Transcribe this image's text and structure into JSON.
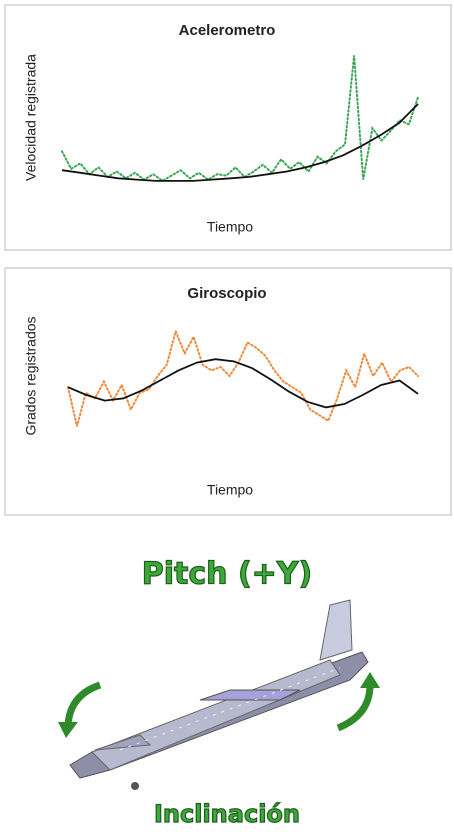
{
  "chart_data": [
    {
      "type": "line",
      "title": "Acelerometro",
      "x_label": "Tiempo",
      "y_label": "Velocidad registrada",
      "ylim": [
        0,
        100
      ],
      "series": [
        {
          "color": "#3aa655",
          "style": "dotted",
          "values": [
            25,
            12,
            16,
            8,
            13,
            6,
            10,
            5,
            9,
            4,
            8,
            3,
            7,
            11,
            5,
            9,
            4,
            8,
            7,
            13,
            6,
            10,
            15,
            9,
            19,
            12,
            17,
            10,
            21,
            16,
            25,
            30,
            96,
            4,
            42,
            33,
            40,
            48,
            45,
            65
          ]
        },
        {
          "color": "#111111",
          "style": "solid",
          "values": [
            11,
            9,
            7,
            5,
            4,
            3,
            3,
            3,
            4,
            5,
            6,
            8,
            10,
            13,
            17,
            22,
            29,
            37,
            46,
            60
          ]
        }
      ]
    },
    {
      "type": "line",
      "title": "Giroscopio",
      "x_label": "Tiempo",
      "y_label": "Grados registrados",
      "ylim": [
        0,
        100
      ],
      "series": [
        {
          "color": "#f08a3c",
          "style": "dotted",
          "values": [
            40,
            5,
            35,
            30,
            45,
            28,
            42,
            20,
            35,
            38,
            50,
            60,
            90,
            70,
            85,
            60,
            55,
            58,
            50,
            62,
            80,
            75,
            68,
            55,
            45,
            40,
            35,
            20,
            15,
            10,
            30,
            55,
            40,
            70,
            50,
            62,
            45,
            55,
            58,
            50
          ]
        },
        {
          "color": "#111111",
          "style": "solid",
          "values": [
            40,
            33,
            28,
            30,
            37,
            46,
            55,
            62,
            65,
            63,
            57,
            47,
            36,
            27,
            22,
            25,
            33,
            42,
            46,
            34
          ]
        }
      ]
    }
  ],
  "illustration": {
    "title": "Pitch (+Y)",
    "caption": "Inclinación"
  }
}
